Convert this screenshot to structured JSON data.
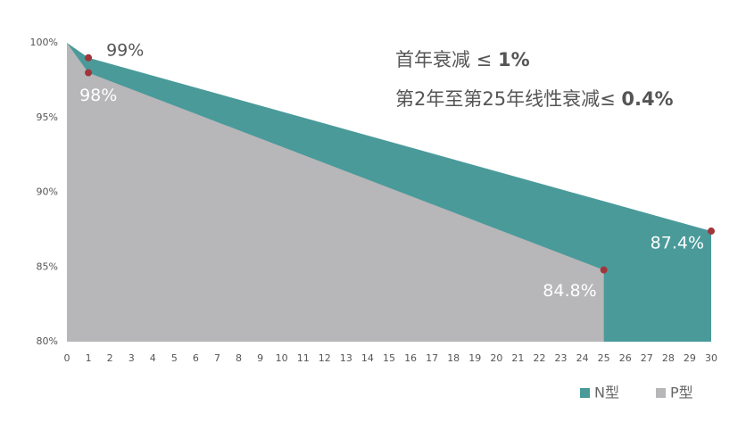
{
  "chart_data": {
    "type": "area",
    "annotations": [
      {
        "text": "首年衰减 ≤ ",
        "bold": "1%"
      },
      {
        "text": "第2年至第25年线性衰减≤ ",
        "bold": "0.4%"
      }
    ],
    "x": [
      0,
      1,
      25,
      30
    ],
    "series": [
      {
        "name": "N型",
        "color": "#4a9a9a",
        "values": [
          100,
          99,
          89.4,
          87.4
        ],
        "value_labels": [
          null,
          "99%",
          null,
          "87.4%"
        ]
      },
      {
        "name": "P型",
        "color": "#b7b6b8",
        "values": [
          100,
          98,
          84.8,
          null
        ],
        "value_labels": [
          null,
          "98%",
          "84.8%",
          null
        ]
      }
    ],
    "marker_color": "#a0363a",
    "xlim": [
      0,
      30
    ],
    "xticks": [
      0,
      1,
      2,
      3,
      4,
      5,
      6,
      7,
      8,
      9,
      10,
      11,
      12,
      13,
      14,
      15,
      16,
      17,
      18,
      19,
      20,
      21,
      22,
      23,
      24,
      25,
      26,
      27,
      28,
      29,
      30
    ],
    "ylim": [
      80,
      100
    ],
    "yticks": [
      {
        "value": 80,
        "label": "80%"
      },
      {
        "value": 85,
        "label": "85%"
      },
      {
        "value": 90,
        "label": "90%"
      },
      {
        "value": 95,
        "label": "95%"
      },
      {
        "value": 100,
        "label": "100%"
      }
    ],
    "legend": "bottom-right"
  }
}
